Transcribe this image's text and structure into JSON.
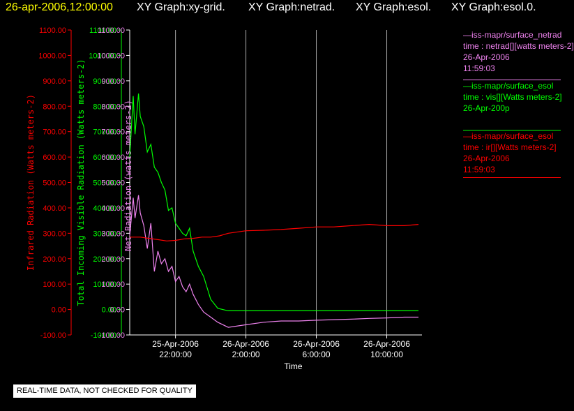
{
  "header": {
    "timestamp": "26-apr-2006,12:00:00",
    "graph_titles": [
      "XY Graph:xy-grid.",
      "XY Graph:netrad.",
      "XY Graph:esol.",
      "XY Graph:esol.0."
    ]
  },
  "colors": {
    "ir": "#ff0000",
    "vis": "#00ff00",
    "net": "#ee82ee",
    "timestamp": "#ffff00",
    "grid": "#aaaaaa"
  },
  "chart_data": {
    "type": "line",
    "xlabel": "Time",
    "x_ticks": [
      {
        "date": "25-Apr-2006",
        "time": "22:00:00"
      },
      {
        "date": "26-Apr-2006",
        "time": "2:00:00"
      },
      {
        "date": "26-Apr-2006",
        "time": "6:00:00"
      },
      {
        "date": "26-Apr-2006",
        "time": "10:00:00"
      }
    ],
    "x_unit": "hours from 25-Apr-2006 22:00",
    "xlim": [
      -2.6,
      14.0
    ],
    "grid": "vertical lines at x ticks",
    "y_axes": [
      {
        "key": "ir",
        "label": "Infrared Radiation (Watts meters-2)",
        "ylim": [
          -100,
          1100
        ]
      },
      {
        "key": "vis",
        "label": "Total Incoming Visible Radiation (Watts meters-2)",
        "ylim": [
          -100,
          1100
        ]
      },
      {
        "key": "net",
        "label": "Net Radiation (watts meters-2)",
        "ylim": [
          -100,
          1100
        ]
      }
    ],
    "y_ticks": [
      "-100.00",
      "0.00",
      "100.00",
      "200.00",
      "300.00",
      "400.00",
      "500.00",
      "600.00",
      "700.00",
      "800.00",
      "900.00",
      "1000.00",
      "1100.00"
    ],
    "series": [
      {
        "key": "vis",
        "x": [
          -2.6,
          -2.4,
          -2.3,
          -2.1,
          -2.0,
          -1.8,
          -1.6,
          -1.4,
          -1.2,
          -1.0,
          -0.8,
          -0.6,
          -0.4,
          -0.2,
          0.0,
          0.2,
          0.4,
          0.6,
          0.8,
          1.0,
          1.3,
          1.6,
          2.0,
          2.4,
          3.0,
          4.0,
          5.0,
          6.0,
          7.0,
          8.0,
          9.0,
          10.0,
          11.0,
          12.0,
          13.0,
          13.8
        ],
        "y": [
          600,
          840,
          690,
          850,
          760,
          720,
          620,
          650,
          560,
          540,
          500,
          470,
          390,
          400,
          340,
          320,
          300,
          290,
          320,
          230,
          170,
          130,
          40,
          5,
          -5,
          -5,
          -5,
          -5,
          -5,
          -5,
          -5,
          -5,
          -5,
          -5,
          -5,
          -5
        ]
      },
      {
        "key": "net",
        "x": [
          -2.6,
          -2.4,
          -2.3,
          -2.1,
          -2.0,
          -1.8,
          -1.6,
          -1.4,
          -1.2,
          -1.0,
          -0.8,
          -0.6,
          -0.4,
          -0.2,
          0.0,
          0.2,
          0.4,
          0.6,
          0.8,
          1.0,
          1.3,
          1.6,
          2.0,
          2.4,
          3.0,
          4.0,
          5.0,
          6.0,
          7.0,
          8.0,
          9.0,
          10.0,
          11.0,
          12.0,
          13.0,
          13.8
        ],
        "y": [
          290,
          440,
          360,
          450,
          380,
          330,
          240,
          340,
          150,
          230,
          180,
          200,
          150,
          170,
          110,
          130,
          90,
          70,
          100,
          60,
          20,
          -10,
          -30,
          -50,
          -70,
          -60,
          -50,
          -45,
          -45,
          -42,
          -40,
          -38,
          -35,
          -33,
          -30,
          -30
        ]
      },
      {
        "key": "ir",
        "x": [
          -2.6,
          -2.0,
          -1.5,
          -1.0,
          -0.5,
          0.0,
          0.5,
          1.0,
          1.5,
          2.0,
          2.5,
          3.0,
          4.0,
          5.0,
          6.0,
          7.0,
          8.0,
          9.0,
          10.0,
          11.0,
          12.0,
          13.0,
          13.8
        ],
        "y": [
          285,
          285,
          280,
          275,
          270,
          272,
          278,
          280,
          285,
          285,
          290,
          300,
          310,
          312,
          315,
          320,
          325,
          325,
          330,
          335,
          330,
          330,
          335
        ]
      }
    ]
  },
  "legend": [
    {
      "key": "net",
      "lines": [
        "—iss-mapr/surface_netrad",
        "time : netrad[][watts meters-2]",
        "26-Apr-2006",
        "11:59:03"
      ]
    },
    {
      "key": "vis",
      "lines": [
        "—iss-mapr/surface_esol",
        "time : vis[][Watts meters-2]",
        "26-Apr-200p"
      ]
    },
    {
      "key": "ir",
      "lines": [
        "—iss-mapr/surface_esol",
        "time : ir[][Watts meters-2]",
        "26-Apr-2006",
        "11:59:03"
      ]
    }
  ],
  "footer": {
    "note": "REAL-TIME DATA, NOT CHECKED FOR QUALITY"
  }
}
